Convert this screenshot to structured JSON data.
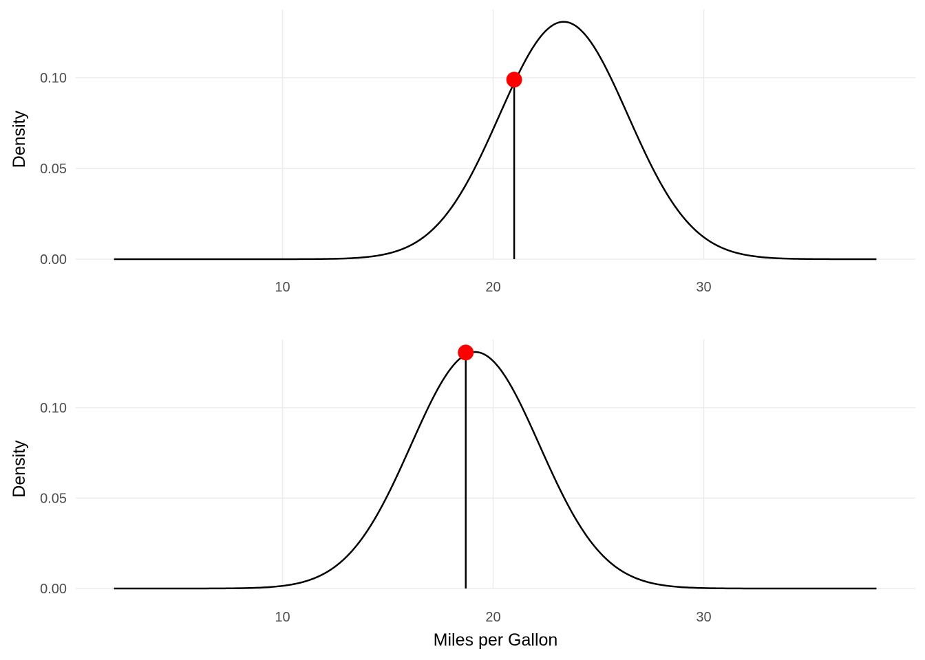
{
  "chart_data": [
    {
      "type": "line",
      "title": "",
      "xlabel": "",
      "ylabel": "Density",
      "xlim": [
        2.0,
        38.0
      ],
      "ylim": [
        0,
        0.131
      ],
      "xticks": [
        10,
        20,
        30
      ],
      "yticks": [
        0.0,
        0.05,
        0.1
      ],
      "xtick_labels": [
        "10",
        "20",
        "30"
      ],
      "ytick_labels": [
        "0.00",
        "0.05",
        "0.10"
      ],
      "grid": true,
      "series": [
        {
          "kind": "normal-density",
          "mean": 23.35,
          "sd": 3.05,
          "x_from": 2.0,
          "x_to": 38.2,
          "color": "#000000"
        }
      ],
      "marker": {
        "x": 21.0,
        "y": 0.0989,
        "color": "#ff0000"
      },
      "vline": {
        "x": 21.0,
        "y_from": 0,
        "y_to": 0.0989,
        "color": "#000000"
      }
    },
    {
      "type": "line",
      "title": "",
      "xlabel": "Miles per Gallon",
      "ylabel": "Density",
      "xlim": [
        2.0,
        38.0
      ],
      "ylim": [
        0,
        0.131
      ],
      "xticks": [
        10,
        20,
        30
      ],
      "yticks": [
        0.0,
        0.05,
        0.1
      ],
      "xtick_labels": [
        "10",
        "20",
        "30"
      ],
      "ytick_labels": [
        "0.00",
        "0.05",
        "0.10"
      ],
      "grid": true,
      "series": [
        {
          "kind": "normal-density",
          "mean": 19.15,
          "sd": 3.05,
          "x_from": 2.0,
          "x_to": 38.2,
          "color": "#000000"
        }
      ],
      "marker": {
        "x": 18.7,
        "y": 0.1305,
        "color": "#ff0000"
      },
      "vline": {
        "x": 18.7,
        "y_from": 0,
        "y_to": 0.1305,
        "color": "#000000"
      }
    }
  ]
}
